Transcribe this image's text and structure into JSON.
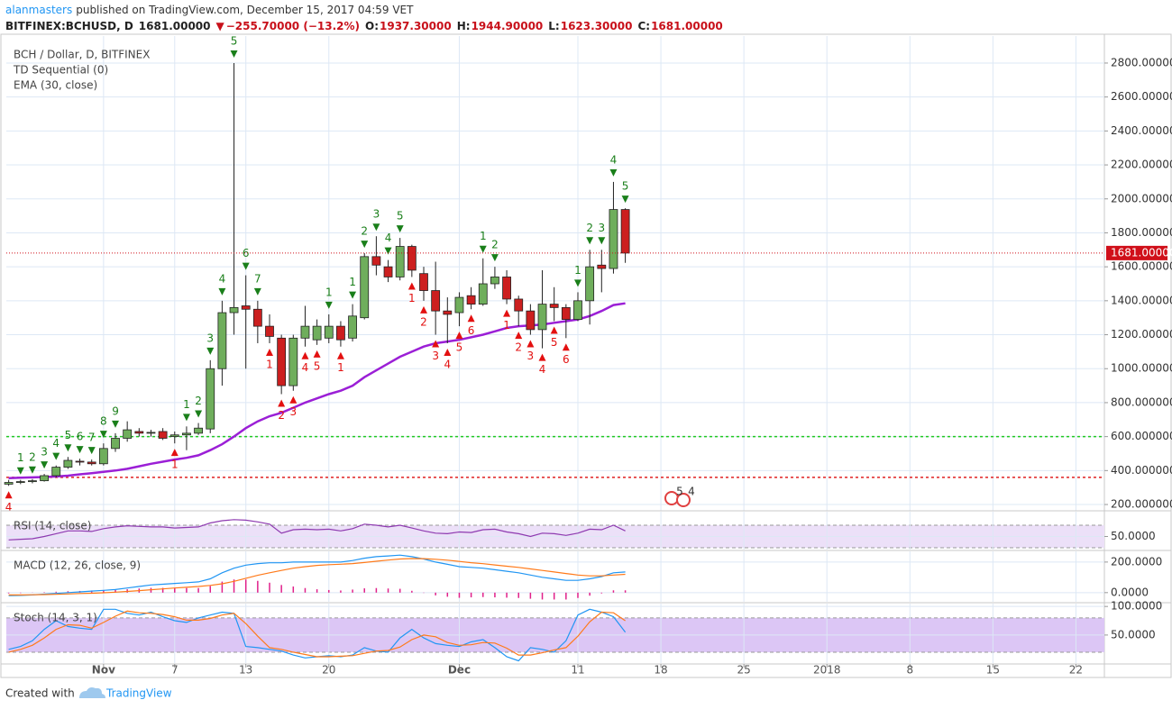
{
  "header": {
    "author": "alanmasters",
    "published": "published on TradingView.com, December 15, 2017 04:59 VET",
    "symbol": "BITFINEX:BCHUSD, D",
    "last": "1681.00000",
    "arrow": "▼",
    "change": "−255.70000 (−13.2%)",
    "open_label": "O:",
    "open": "1937.30000",
    "high_label": "H:",
    "high": "1944.90000",
    "low_label": "L:",
    "low": "1623.30000",
    "close_label": "C:",
    "close": "1681.00000"
  },
  "footer": {
    "created": "Created with",
    "brand": "TradingView"
  },
  "chart_data": [
    {
      "type": "candlestick",
      "title": "BCH / Dollar, D, BITFINEX",
      "x": [
        -8,
        -7,
        -6,
        -5,
        -4,
        -3,
        -2,
        -1,
        0,
        1,
        2,
        3,
        4,
        5,
        6,
        7,
        8,
        9,
        10,
        11,
        12,
        13,
        14,
        15,
        16,
        17,
        18,
        19,
        20,
        21,
        22,
        23,
        24,
        25,
        26,
        27,
        28,
        29,
        30,
        31,
        32,
        33,
        34,
        35,
        36,
        37,
        38,
        39,
        40,
        41,
        42,
        43,
        44
      ],
      "open": [
        320,
        330,
        335,
        340,
        370,
        420,
        455,
        450,
        440,
        530,
        590,
        630,
        620,
        630,
        600,
        610,
        620,
        645,
        1000,
        1330,
        1370,
        1350,
        1250,
        1180,
        900,
        1180,
        1170,
        1180,
        1250,
        1180,
        1300,
        1660,
        1600,
        1540,
        1720,
        1560,
        1460,
        1340,
        1330,
        1430,
        1380,
        1500,
        1540,
        1410,
        1340,
        1230,
        1380,
        1360,
        1290,
        1400,
        1610,
        1590,
        1937.3
      ],
      "high": [
        345,
        345,
        350,
        380,
        430,
        480,
        470,
        465,
        560,
        620,
        690,
        650,
        640,
        650,
        630,
        660,
        680,
        1050,
        1400,
        2800,
        1550,
        1400,
        1320,
        1200,
        1200,
        1370,
        1290,
        1320,
        1280,
        1380,
        1680,
        1780,
        1640,
        1770,
        1730,
        1600,
        1630,
        1420,
        1450,
        1480,
        1650,
        1600,
        1580,
        1430,
        1380,
        1580,
        1480,
        1380,
        1450,
        1700,
        1700,
        2100,
        1944.9
      ],
      "low": [
        310,
        320,
        325,
        335,
        360,
        410,
        430,
        430,
        430,
        510,
        570,
        600,
        600,
        580,
        560,
        520,
        610,
        620,
        900,
        1200,
        1000,
        1150,
        1150,
        850,
        870,
        1130,
        1140,
        1150,
        1130,
        1160,
        1290,
        1550,
        1510,
        1520,
        1540,
        1400,
        1200,
        1150,
        1250,
        1350,
        1370,
        1470,
        1380,
        1250,
        1200,
        1120,
        1280,
        1180,
        1280,
        1260,
        1450,
        1560,
        1623.3
      ],
      "close": [
        330,
        335,
        340,
        370,
        420,
        460,
        450,
        440,
        530,
        590,
        640,
        620,
        625,
        590,
        610,
        620,
        650,
        1000,
        1330,
        1360,
        1350,
        1250,
        1190,
        900,
        1180,
        1250,
        1250,
        1250,
        1170,
        1310,
        1660,
        1610,
        1540,
        1720,
        1580,
        1460,
        1340,
        1320,
        1420,
        1380,
        1500,
        1540,
        1410,
        1340,
        1230,
        1380,
        1360,
        1290,
        1400,
        1600,
        1590,
        1937.3,
        1681
      ],
      "up_color": "#6fae5c",
      "down_color": "#cc1f1f",
      "series": [
        {
          "name": "EMA (30, close)",
          "color": "#9b1fd6",
          "values": [
            355,
            358,
            360,
            362,
            365,
            370,
            378,
            385,
            392,
            400,
            410,
            425,
            440,
            452,
            465,
            475,
            490,
            520,
            555,
            600,
            650,
            690,
            720,
            740,
            770,
            800,
            825,
            850,
            870,
            900,
            950,
            990,
            1030,
            1070,
            1100,
            1130,
            1150,
            1160,
            1170,
            1185,
            1200,
            1220,
            1240,
            1250,
            1255,
            1260,
            1270,
            1280,
            1290,
            1310,
            1340,
            1375,
            1385
          ]
        }
      ],
      "td_sequential": {
        "name": "TD Sequential (0)",
        "sell_color": "#1a7f1a",
        "buy_color": "#e31010",
        "sell_counts": [
          null,
          1,
          2,
          3,
          4,
          5,
          6,
          7,
          8,
          9,
          null,
          null,
          null,
          null,
          null,
          1,
          2,
          3,
          4,
          5,
          6,
          7,
          null,
          null,
          null,
          null,
          null,
          1,
          null,
          1,
          2,
          3,
          4,
          5,
          null,
          null,
          null,
          null,
          null,
          null,
          1,
          2,
          null,
          null,
          null,
          null,
          null,
          null,
          1,
          2,
          3,
          4,
          5
        ],
        "buy_counts": [
          4,
          null,
          null,
          null,
          null,
          null,
          null,
          null,
          null,
          null,
          null,
          null,
          null,
          null,
          1,
          null,
          null,
          null,
          null,
          null,
          null,
          null,
          1,
          2,
          3,
          4,
          5,
          null,
          1,
          null,
          null,
          null,
          null,
          null,
          1,
          2,
          3,
          4,
          5,
          6,
          null,
          null,
          1,
          2,
          3,
          4,
          5,
          6,
          null,
          null,
          null,
          null,
          null
        ]
      },
      "hlines": [
        {
          "value": 600,
          "color": "#22c922"
        },
        {
          "value": 360,
          "color": "#e02020"
        }
      ],
      "last_price": {
        "value": 1681,
        "label": "1681.00000",
        "color": "#d0101a"
      },
      "events": [
        "5",
        "4"
      ],
      "xlim": [
        -8.2,
        84.4
      ],
      "xticks": [
        {
          "value": 0,
          "label": "Nov"
        },
        {
          "value": 6,
          "label": "7"
        },
        {
          "value": 12,
          "label": "13"
        },
        {
          "value": 19,
          "label": "20"
        },
        {
          "value": 30,
          "label": "Dec"
        },
        {
          "value": 40,
          "label": "11"
        },
        {
          "value": 47,
          "label": "18"
        },
        {
          "value": 54,
          "label": "25"
        },
        {
          "value": 61,
          "label": "2018"
        },
        {
          "value": 68,
          "label": "8"
        },
        {
          "value": 75,
          "label": "15"
        },
        {
          "value": 82,
          "label": "22"
        }
      ],
      "ylim": [
        163,
        2959
      ],
      "yticks": [
        {
          "value": 2800,
          "label": "2800.00000"
        },
        {
          "value": 2600,
          "label": "2600.00000"
        },
        {
          "value": 2400,
          "label": "2400.00000"
        },
        {
          "value": 2200,
          "label": "2200.00000"
        },
        {
          "value": 2000,
          "label": "2000.00000"
        },
        {
          "value": 1800,
          "label": "1800.00000"
        },
        {
          "value": 1600,
          "label": "1600.00000"
        },
        {
          "value": 1400,
          "label": "1400.00000"
        },
        {
          "value": 1200,
          "label": "1200.00000"
        },
        {
          "value": 1000,
          "label": "1000.00000"
        },
        {
          "value": 800,
          "label": "800.000000"
        },
        {
          "value": 600,
          "label": "600.000000"
        },
        {
          "value": 400,
          "label": "400.000000"
        },
        {
          "value": 200,
          "label": "200.000000"
        }
      ],
      "grid": true
    },
    {
      "type": "line",
      "title": "RSI (14, close)",
      "series": [
        {
          "color": "#8e3ab0",
          "values": [
            44,
            45,
            46,
            50,
            55,
            60,
            60,
            59,
            64,
            67,
            69,
            68,
            67,
            67,
            65,
            66,
            67,
            74,
            78,
            80,
            79,
            76,
            72,
            56,
            62,
            63,
            62,
            63,
            60,
            64,
            72,
            70,
            67,
            70,
            65,
            60,
            56,
            55,
            58,
            57,
            62,
            63,
            58,
            55,
            50,
            56,
            55,
            52,
            56,
            63,
            62,
            70,
            60
          ]
        }
      ],
      "band": [
        30,
        70
      ],
      "band_color": "#ece0f8",
      "ylim": [
        26.8,
        94
      ],
      "yticks": [
        {
          "value": 50,
          "label": "50.0000"
        }
      ],
      "grid": true
    },
    {
      "type": "line",
      "title": "MACD (12, 26, close, 9)",
      "series": [
        {
          "color": "#2196f3",
          "values": [
            -20,
            -18,
            -15,
            -10,
            -5,
            0,
            5,
            10,
            15,
            20,
            30,
            40,
            50,
            55,
            60,
            65,
            70,
            90,
            130,
            160,
            180,
            190,
            195,
            195,
            200,
            200,
            200,
            200,
            200,
            210,
            225,
            235,
            240,
            245,
            235,
            220,
            200,
            185,
            170,
            165,
            160,
            150,
            140,
            130,
            115,
            100,
            90,
            80,
            80,
            90,
            105,
            130,
            135
          ]
        },
        {
          "color": "#ff7a1a",
          "values": [
            -15,
            -15,
            -14,
            -13,
            -11,
            -9,
            -6,
            -4,
            -1,
            3,
            8,
            13,
            19,
            24,
            30,
            35,
            40,
            47,
            58,
            74,
            94,
            113,
            130,
            145,
            160,
            170,
            178,
            183,
            186,
            190,
            197,
            205,
            213,
            220,
            223,
            222,
            218,
            212,
            204,
            196,
            189,
            181,
            173,
            165,
            155,
            145,
            135,
            125,
            115,
            110,
            110,
            115,
            120
          ]
        }
      ],
      "histogram": {
        "color": "#e0208a",
        "values": [
          -5,
          -3,
          -1,
          3,
          6,
          9,
          11,
          14,
          16,
          17,
          22,
          27,
          31,
          31,
          30,
          30,
          30,
          43,
          72,
          86,
          86,
          77,
          65,
          50,
          40,
          30,
          22,
          17,
          14,
          20,
          28,
          30,
          27,
          25,
          12,
          -2,
          -18,
          -27,
          -34,
          -31,
          -29,
          -31,
          -33,
          -35,
          -40,
          -45,
          -45,
          -45,
          -35,
          -20,
          -5,
          15,
          15
        ]
      },
      "ylim": [
        -60,
        270
      ],
      "yticks": [
        {
          "value": 200,
          "label": "200.0000"
        },
        {
          "value": 0,
          "label": "0.0000"
        }
      ],
      "grid": true
    },
    {
      "type": "line",
      "title": "Stoch (14, 3, 1)",
      "series": [
        {
          "color": "#2196f3",
          "values": [
            25,
            30,
            40,
            60,
            75,
            65,
            62,
            60,
            95,
            95,
            88,
            85,
            90,
            82,
            75,
            72,
            80,
            85,
            90,
            88,
            30,
            28,
            25,
            22,
            15,
            10,
            12,
            14,
            12,
            15,
            28,
            22,
            20,
            45,
            60,
            45,
            35,
            32,
            30,
            38,
            42,
            28,
            12,
            5,
            28,
            25,
            20,
            40,
            85,
            95,
            90,
            82,
            55
          ]
        },
        {
          "color": "#ff7a1a",
          "values": [
            20,
            25,
            32,
            45,
            60,
            68,
            67,
            62,
            72,
            83,
            92,
            89,
            88,
            86,
            82,
            76,
            76,
            79,
            85,
            88,
            70,
            48,
            28,
            25,
            20,
            16,
            12,
            12,
            13,
            14,
            18,
            22,
            23,
            29,
            42,
            50,
            47,
            37,
            32,
            33,
            37,
            36,
            27,
            15,
            15,
            19,
            24,
            28,
            48,
            73,
            90,
            89,
            75
          ]
        }
      ],
      "band": [
        20,
        80
      ],
      "band_color": "#dcc6f5",
      "ylim": [
        1,
        105
      ],
      "yticks": [
        {
          "value": 100,
          "label": "100.0000"
        },
        {
          "value": 50,
          "label": "50.0000"
        }
      ],
      "grid": true
    }
  ]
}
